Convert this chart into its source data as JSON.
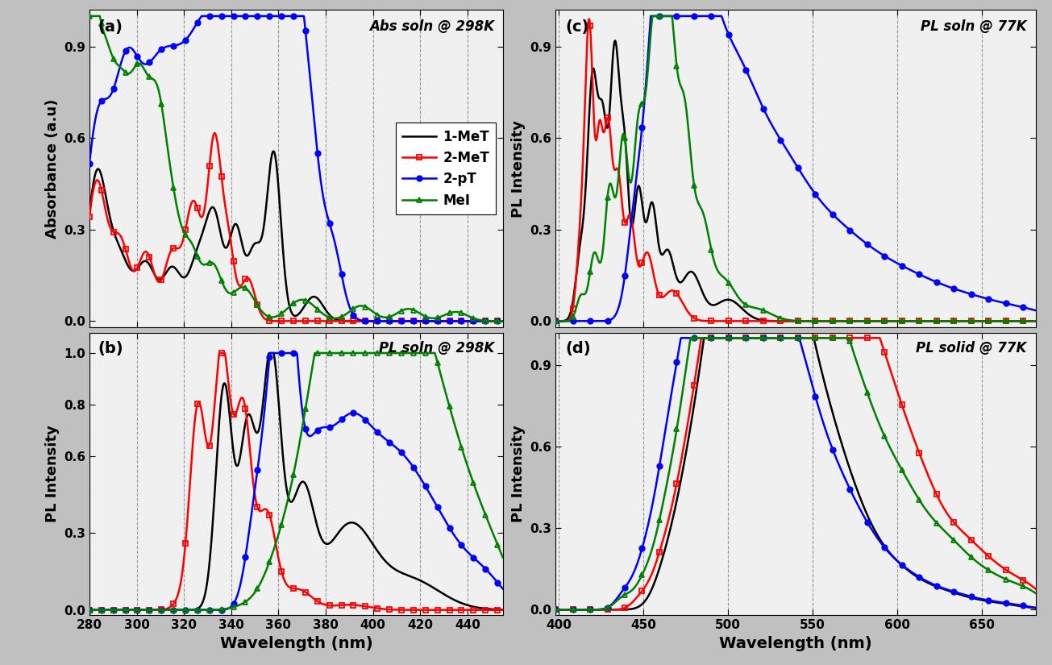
{
  "panel_a_title": "Abs soln @ 298K",
  "panel_b_title": "PL soln @ 298K",
  "panel_c_title": "PL soln @ 77K",
  "panel_d_title": "PL solid @ 77K",
  "panel_ab_xlabel": "Wavelength (nm)",
  "panel_cd_xlabel": "Wavelength (nm)",
  "panel_a_ylabel": "Absorbance (a.u)",
  "panel_b_ylabel": "PL Intensity",
  "panel_c_ylabel": "PL Intensity",
  "panel_d_ylabel": "PL Intensity",
  "legend_labels": [
    "1-MeT",
    "2-MeT",
    "2-pT",
    "MeI"
  ],
  "bg_color": "#ffffff",
  "fig_bg_color": "#c0c0c0",
  "panel_ab_xlim": [
    280,
    455
  ],
  "panel_cd_xlim": [
    398,
    682
  ],
  "panel_a_ylim": [
    -0.02,
    1.02
  ],
  "panel_b_ylim": [
    -0.02,
    1.08
  ],
  "panel_c_ylim": [
    -0.02,
    1.02
  ],
  "panel_d_ylim": [
    -0.02,
    1.02
  ]
}
